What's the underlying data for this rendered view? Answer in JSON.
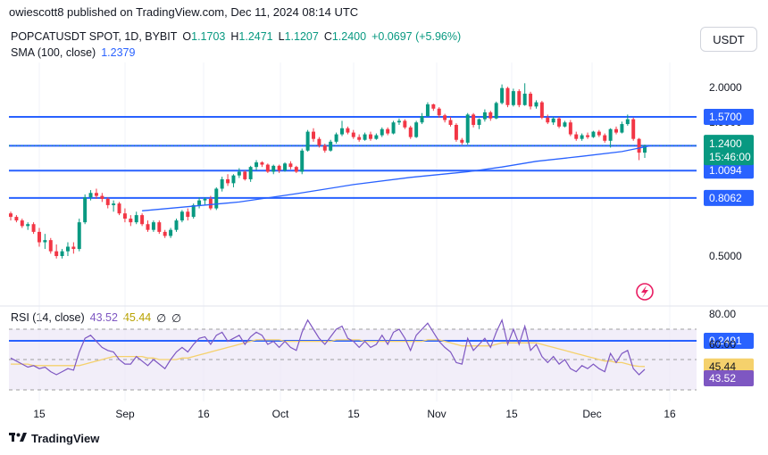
{
  "publisher_line": "owiescott8 published on TradingView.com, Dec 11, 2024 08:14 UTC",
  "header": {
    "symbol": "POPCATUSDT SPOT, 1D, BYBIT",
    "open_label": "O",
    "open": "1.1703",
    "high_label": "H",
    "high": "1.2471",
    "low_label": "L",
    "low": "1.1207",
    "close_label": "C",
    "close": "1.2400",
    "change": "+0.0697 (+5.96%)"
  },
  "sma": {
    "label": "SMA (100, close)",
    "value": "1.2379"
  },
  "rsi": {
    "label": "RSI (14, close)",
    "value": "43.52",
    "ma_value": "45.44",
    "extra1": "∅",
    "extra2": "∅"
  },
  "currency_button": "USDT",
  "footer_brand": "TradingView",
  "colors": {
    "up": "#089981",
    "down": "#f23645",
    "sma": "#2962ff",
    "level": "#2962ff",
    "rsi": "#7e57c2",
    "rsi_ma": "#f5d16c"
  },
  "chart_data": {
    "type": "candlestick",
    "price_axis": {
      "ticks": [
        {
          "value": 2.0,
          "label": "2.0000"
        },
        {
          "value": 1.5,
          "label": "1.5000"
        },
        {
          "value": 0.5,
          "label": "0.5000"
        }
      ]
    },
    "horizontal_levels": [
      {
        "value": 1.57,
        "label": "1.5700"
      },
      {
        "value": 1.0094,
        "label": "1.0094"
      },
      {
        "value": 0.8062,
        "label": "0.8062"
      },
      {
        "value": 0.2491,
        "label": "0.2491"
      }
    ],
    "last_price": {
      "value": 1.24,
      "label": "1.2400",
      "countdown": "15:46:00"
    },
    "sma_label": {
      "value": 1.2379,
      "label": "1.2379"
    },
    "x_axis_labels": [
      "15",
      "Sep",
      "16",
      "Oct",
      "15",
      "Nov",
      "15",
      "Dec",
      "16"
    ],
    "candles": [
      [
        0.71,
        0.72,
        0.67,
        0.69
      ],
      [
        0.69,
        0.7,
        0.66,
        0.67
      ],
      [
        0.67,
        0.68,
        0.63,
        0.64
      ],
      [
        0.64,
        0.66,
        0.62,
        0.65
      ],
      [
        0.65,
        0.66,
        0.6,
        0.61
      ],
      [
        0.61,
        0.63,
        0.54,
        0.56
      ],
      [
        0.56,
        0.6,
        0.53,
        0.57
      ],
      [
        0.57,
        0.58,
        0.51,
        0.52
      ],
      [
        0.52,
        0.55,
        0.49,
        0.5
      ],
      [
        0.5,
        0.53,
        0.49,
        0.52
      ],
      [
        0.52,
        0.56,
        0.5,
        0.54
      ],
      [
        0.54,
        0.56,
        0.51,
        0.53
      ],
      [
        0.53,
        0.68,
        0.52,
        0.66
      ],
      [
        0.66,
        0.83,
        0.65,
        0.81
      ],
      [
        0.81,
        0.86,
        0.79,
        0.84
      ],
      [
        0.84,
        0.87,
        0.8,
        0.82
      ],
      [
        0.82,
        0.84,
        0.78,
        0.8
      ],
      [
        0.8,
        0.81,
        0.74,
        0.76
      ],
      [
        0.76,
        0.79,
        0.72,
        0.77
      ],
      [
        0.77,
        0.78,
        0.7,
        0.71
      ],
      [
        0.71,
        0.74,
        0.66,
        0.68
      ],
      [
        0.68,
        0.7,
        0.64,
        0.66
      ],
      [
        0.66,
        0.72,
        0.65,
        0.7
      ],
      [
        0.7,
        0.71,
        0.64,
        0.65
      ],
      [
        0.65,
        0.67,
        0.61,
        0.62
      ],
      [
        0.62,
        0.67,
        0.61,
        0.66
      ],
      [
        0.66,
        0.67,
        0.6,
        0.61
      ],
      [
        0.61,
        0.62,
        0.58,
        0.59
      ],
      [
        0.59,
        0.63,
        0.58,
        0.62
      ],
      [
        0.62,
        0.68,
        0.61,
        0.67
      ],
      [
        0.67,
        0.73,
        0.66,
        0.72
      ],
      [
        0.72,
        0.74,
        0.67,
        0.69
      ],
      [
        0.69,
        0.77,
        0.68,
        0.76
      ],
      [
        0.76,
        0.81,
        0.74,
        0.79
      ],
      [
        0.79,
        0.81,
        0.76,
        0.8
      ],
      [
        0.8,
        0.82,
        0.73,
        0.74
      ],
      [
        0.74,
        0.88,
        0.73,
        0.87
      ],
      [
        0.87,
        0.96,
        0.85,
        0.94
      ],
      [
        0.94,
        0.98,
        0.89,
        0.91
      ],
      [
        0.91,
        0.98,
        0.88,
        0.97
      ],
      [
        0.97,
        1.03,
        0.95,
        1.0
      ],
      [
        1.0,
        1.01,
        0.93,
        0.94
      ],
      [
        0.94,
        1.05,
        0.92,
        1.04
      ],
      [
        1.04,
        1.1,
        1.01,
        1.08
      ],
      [
        1.08,
        1.09,
        1.04,
        1.06
      ],
      [
        1.06,
        1.07,
        0.99,
        1.0
      ],
      [
        1.0,
        1.06,
        0.98,
        1.05
      ],
      [
        1.05,
        1.06,
        0.99,
        1.01
      ],
      [
        1.01,
        1.08,
        1.0,
        1.07
      ],
      [
        1.07,
        1.09,
        1.02,
        1.04
      ],
      [
        1.04,
        1.05,
        0.99,
        1.0
      ],
      [
        1.0,
        1.21,
        0.98,
        1.19
      ],
      [
        1.19,
        1.41,
        1.18,
        1.39
      ],
      [
        1.39,
        1.43,
        1.28,
        1.31
      ],
      [
        1.31,
        1.33,
        1.22,
        1.24
      ],
      [
        1.24,
        1.26,
        1.17,
        1.19
      ],
      [
        1.19,
        1.3,
        1.18,
        1.28
      ],
      [
        1.28,
        1.38,
        1.26,
        1.36
      ],
      [
        1.36,
        1.52,
        1.34,
        1.43
      ],
      [
        1.43,
        1.45,
        1.36,
        1.38
      ],
      [
        1.38,
        1.41,
        1.31,
        1.33
      ],
      [
        1.33,
        1.36,
        1.28,
        1.3
      ],
      [
        1.3,
        1.38,
        1.29,
        1.36
      ],
      [
        1.36,
        1.39,
        1.29,
        1.31
      ],
      [
        1.31,
        1.37,
        1.3,
        1.35
      ],
      [
        1.35,
        1.44,
        1.33,
        1.42
      ],
      [
        1.42,
        1.44,
        1.35,
        1.37
      ],
      [
        1.37,
        1.52,
        1.36,
        1.5
      ],
      [
        1.5,
        1.55,
        1.47,
        1.52
      ],
      [
        1.52,
        1.54,
        1.42,
        1.44
      ],
      [
        1.44,
        1.46,
        1.31,
        1.33
      ],
      [
        1.33,
        1.52,
        1.32,
        1.5
      ],
      [
        1.5,
        1.62,
        1.48,
        1.58
      ],
      [
        1.58,
        1.77,
        1.57,
        1.74
      ],
      [
        1.74,
        1.75,
        1.65,
        1.68
      ],
      [
        1.68,
        1.7,
        1.56,
        1.59
      ],
      [
        1.59,
        1.61,
        1.5,
        1.53
      ],
      [
        1.53,
        1.57,
        1.45,
        1.47
      ],
      [
        1.47,
        1.49,
        1.28,
        1.3
      ],
      [
        1.3,
        1.32,
        1.25,
        1.27
      ],
      [
        1.27,
        1.62,
        1.25,
        1.6
      ],
      [
        1.6,
        1.62,
        1.44,
        1.47
      ],
      [
        1.47,
        1.55,
        1.42,
        1.54
      ],
      [
        1.54,
        1.67,
        1.51,
        1.63
      ],
      [
        1.63,
        1.65,
        1.52,
        1.55
      ],
      [
        1.55,
        1.78,
        1.54,
        1.76
      ],
      [
        1.76,
        2.05,
        1.74,
        1.99
      ],
      [
        1.99,
        2.01,
        1.7,
        1.73
      ],
      [
        1.73,
        1.98,
        1.71,
        1.94
      ],
      [
        1.94,
        1.97,
        1.7,
        1.73
      ],
      [
        1.73,
        2.07,
        1.72,
        1.9
      ],
      [
        1.9,
        1.93,
        1.67,
        1.71
      ],
      [
        1.71,
        1.8,
        1.68,
        1.77
      ],
      [
        1.77,
        1.79,
        1.54,
        1.56
      ],
      [
        1.56,
        1.6,
        1.48,
        1.5
      ],
      [
        1.5,
        1.57,
        1.47,
        1.55
      ],
      [
        1.55,
        1.57,
        1.43,
        1.45
      ],
      [
        1.45,
        1.52,
        1.44,
        1.5
      ],
      [
        1.5,
        1.53,
        1.34,
        1.36
      ],
      [
        1.36,
        1.39,
        1.29,
        1.31
      ],
      [
        1.31,
        1.37,
        1.29,
        1.35
      ],
      [
        1.35,
        1.38,
        1.31,
        1.33
      ],
      [
        1.33,
        1.4,
        1.32,
        1.39
      ],
      [
        1.39,
        1.41,
        1.33,
        1.35
      ],
      [
        1.35,
        1.37,
        1.27,
        1.29
      ],
      [
        1.29,
        1.43,
        1.22,
        1.42
      ],
      [
        1.42,
        1.45,
        1.36,
        1.38
      ],
      [
        1.38,
        1.51,
        1.37,
        1.48
      ],
      [
        1.48,
        1.6,
        1.46,
        1.54
      ],
      [
        1.54,
        1.56,
        1.29,
        1.31
      ],
      [
        1.31,
        1.32,
        1.1,
        1.17
      ],
      [
        1.17,
        1.25,
        1.12,
        1.24
      ]
    ],
    "sma_points": [
      [
        23,
        0.725
      ],
      [
        40,
        0.78
      ],
      [
        50,
        0.835
      ],
      [
        60,
        0.9
      ],
      [
        70,
        0.955
      ],
      [
        80,
        1.0
      ],
      [
        86,
        1.04
      ],
      [
        92,
        1.09
      ],
      [
        100,
        1.135
      ],
      [
        107,
        1.18
      ],
      [
        112,
        1.2379
      ]
    ],
    "rsi_axis": {
      "ticks": [
        {
          "value": 80,
          "label": "80.00"
        },
        {
          "value": 60,
          "label": "60.00"
        }
      ],
      "partial_label": "40.00",
      "upper_band": 70,
      "lower_band": 30,
      "middle": 50
    },
    "rsi_values": [
      51,
      49,
      47,
      45,
      46,
      44,
      45,
      42,
      40,
      42,
      44,
      43,
      55,
      64,
      66,
      62,
      58,
      56,
      55,
      50,
      47,
      47,
      52,
      49,
      46,
      50,
      47,
      44,
      50,
      55,
      58,
      55,
      60,
      64,
      65,
      60,
      66,
      68,
      62,
      64,
      66,
      60,
      65,
      68,
      66,
      60,
      62,
      58,
      62,
      58,
      56,
      68,
      76,
      70,
      64,
      60,
      65,
      70,
      72,
      64,
      62,
      58,
      62,
      58,
      60,
      66,
      60,
      68,
      70,
      64,
      56,
      66,
      70,
      74,
      68,
      62,
      58,
      55,
      48,
      47,
      64,
      56,
      60,
      64,
      58,
      68,
      76,
      60,
      70,
      60,
      72,
      56,
      60,
      52,
      48,
      52,
      47,
      50,
      44,
      42,
      46,
      44,
      47,
      44,
      42,
      54,
      48,
      54,
      56,
      44,
      40,
      43.52
    ],
    "rsi_ma_values": [
      47,
      47,
      47,
      47,
      46,
      46,
      46,
      46,
      46,
      46,
      46,
      46,
      46,
      47,
      48,
      49,
      50,
      51,
      52,
      52,
      52,
      52,
      52,
      52,
      51,
      51,
      50,
      50,
      50,
      50,
      51,
      51,
      52,
      53,
      54,
      55,
      56,
      57,
      58,
      59,
      60,
      61,
      62,
      63,
      63,
      63,
      63,
      63,
      62,
      62,
      62,
      62,
      62,
      62,
      62,
      62,
      62,
      63,
      63,
      63,
      63,
      63,
      62,
      62,
      62,
      62,
      62,
      62,
      62,
      62,
      62,
      62,
      62,
      63,
      63,
      63,
      62,
      61,
      60,
      59,
      59,
      59,
      59,
      59,
      59,
      60,
      61,
      61,
      61,
      61,
      61,
      61,
      61,
      60,
      59,
      58,
      57,
      56,
      55,
      54,
      53,
      52,
      51,
      50,
      49,
      49,
      48,
      48,
      47,
      46,
      45.5,
      45.44
    ]
  }
}
